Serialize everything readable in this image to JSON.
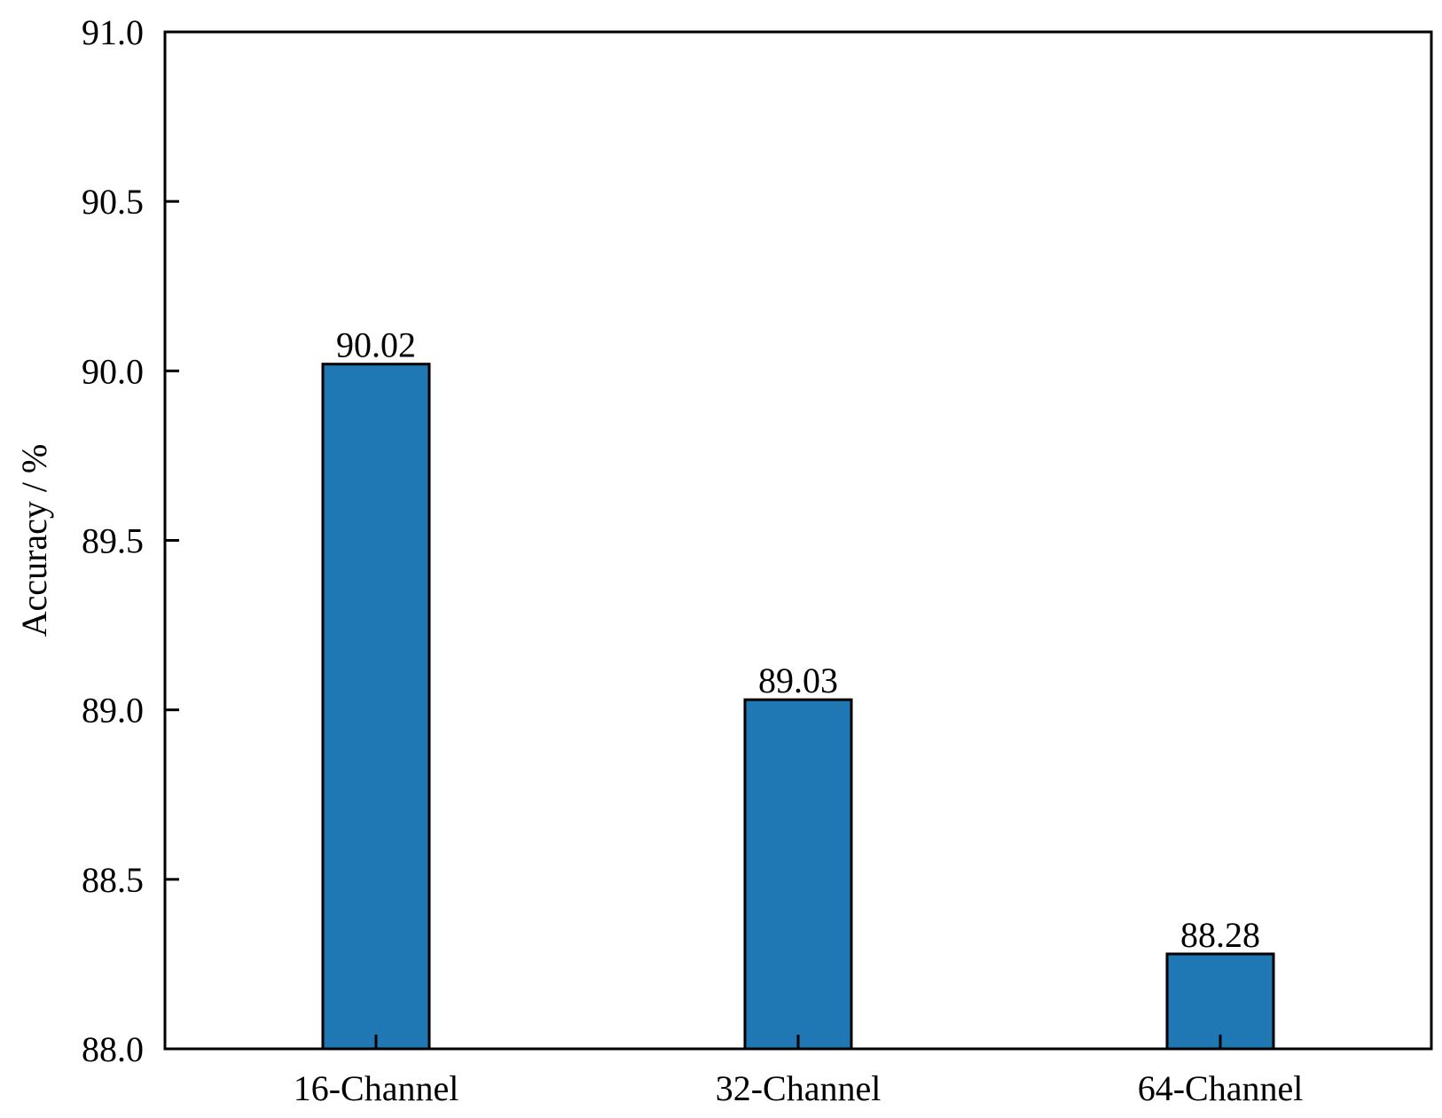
{
  "chart_data": {
    "type": "bar",
    "title": "",
    "xlabel": "",
    "ylabel": "Accuracy / %",
    "categories": [
      "16-Channel",
      "32-Channel",
      "64-Channel"
    ],
    "values": [
      90.02,
      89.03,
      88.28
    ],
    "value_labels": [
      "90.02",
      "89.03",
      "88.28"
    ],
    "ylim": [
      88.0,
      91.0
    ],
    "yticks": [
      88.0,
      88.5,
      89.0,
      89.5,
      90.0,
      90.5,
      91.0
    ],
    "ytick_labels": [
      "88.0",
      "88.5",
      "89.0",
      "89.5",
      "90.0",
      "90.5",
      "91.0"
    ],
    "grid": false,
    "legend": "none",
    "bar_color": "#1f77b4",
    "edge_color": "#000000"
  }
}
